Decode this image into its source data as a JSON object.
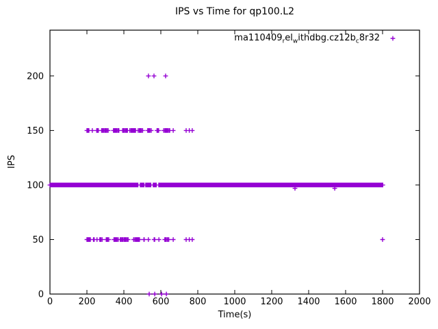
{
  "colors": {
    "marker": "#9400d3",
    "axis": "#000000",
    "background": "#ffffff",
    "text": "#000000"
  },
  "chart_data": {
    "type": "scatter",
    "title": "IPS vs Time for qp100.L2",
    "xlabel": "Time(s)",
    "ylabel": "IPS",
    "xlim": [
      0,
      2000
    ],
    "ylim": [
      0,
      242
    ],
    "xticks": [
      0,
      200,
      400,
      600,
      800,
      1000,
      1200,
      1400,
      1600,
      1800,
      2000
    ],
    "yticks": [
      0,
      50,
      100,
      150,
      200
    ],
    "grid": false,
    "legend_position": "top-right-inside",
    "marker": "plus",
    "series": [
      {
        "name": "ma110409_rel_withdbg.cz12b_c8r32",
        "label_parts": [
          {
            "text": "ma110409"
          },
          {
            "text": "r",
            "subscript": true
          },
          {
            "text": "el"
          },
          {
            "text": "w",
            "subscript": true
          },
          {
            "text": "ithdbg.cz12b"
          },
          {
            "text": "c",
            "subscript": true
          },
          {
            "text": "8r32"
          }
        ],
        "bands": [
          {
            "y": 100,
            "style": "solid",
            "step_s": 4,
            "segments": [
              [
                0,
                478
              ],
              [
                489,
                511
              ],
              [
                518,
                548
              ],
              [
                559,
                578
              ],
              [
                589,
                1804
              ]
            ]
          },
          {
            "y": 150,
            "style": "dense_scatter",
            "seed": 1384,
            "segments": [
              [
                200,
                648
              ]
            ]
          },
          {
            "y": 50,
            "style": "dense_scatter",
            "seed": 1284,
            "segments": [
              [
                200,
                643
              ]
            ]
          }
        ],
        "points": [
          [
            533,
            200
          ],
          [
            563,
            200
          ],
          [
            626,
            200
          ],
          [
            537,
            0
          ],
          [
            567,
            0
          ],
          [
            604,
            0
          ],
          [
            630,
            0
          ],
          [
            667,
            150
          ],
          [
            737,
            150
          ],
          [
            754,
            150
          ],
          [
            770,
            150
          ],
          [
            667,
            50
          ],
          [
            737,
            50
          ],
          [
            754,
            50
          ],
          [
            770,
            50
          ],
          [
            1326,
            97
          ],
          [
            1541,
            97
          ],
          [
            1800,
            50
          ]
        ]
      }
    ]
  }
}
